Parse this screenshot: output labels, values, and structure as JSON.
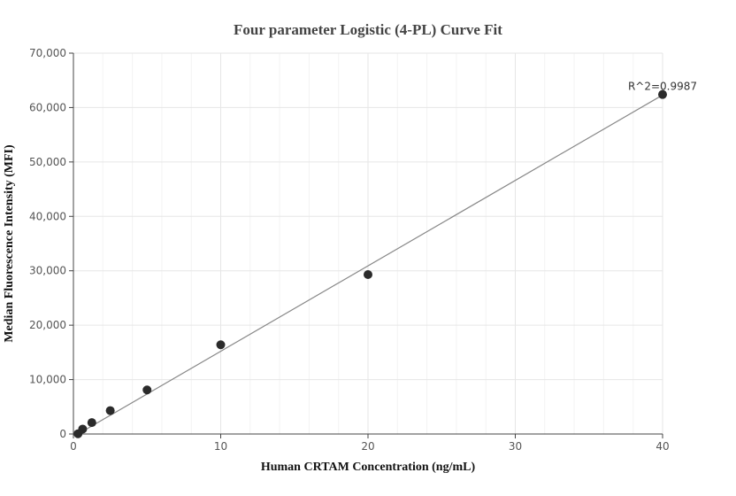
{
  "chart_data": {
    "type": "scatter",
    "title": "Four parameter Logistic (4-PL) Curve Fit",
    "xlabel": "Human CRTAM Concentration (ng/mL)",
    "ylabel": "Median Fluorescence Intensity (MFI)",
    "xlim": [
      0,
      40
    ],
    "ylim": [
      0,
      70000
    ],
    "x_ticks": [
      0,
      10,
      20,
      30,
      40
    ],
    "x_tick_labels": [
      "0",
      "10",
      "20",
      "30",
      "40"
    ],
    "y_ticks": [
      0,
      10000,
      20000,
      30000,
      40000,
      50000,
      60000,
      70000
    ],
    "y_tick_labels": [
      "0",
      "10,000",
      "20,000",
      "30,000",
      "40,000",
      "50,000",
      "60,000",
      "70,000"
    ],
    "grid": true,
    "points": [
      {
        "x": 0.3125,
        "y": 50
      },
      {
        "x": 0.625,
        "y": 900
      },
      {
        "x": 1.25,
        "y": 2100
      },
      {
        "x": 2.5,
        "y": 4300
      },
      {
        "x": 5,
        "y": 8100
      },
      {
        "x": 10,
        "y": 16400
      },
      {
        "x": 20,
        "y": 29300
      },
      {
        "x": 40,
        "y": 62400
      }
    ],
    "fit_line": [
      {
        "x": 0.3125,
        "y": 0
      },
      {
        "x": 40,
        "y": 62300
      }
    ],
    "annotation": "R^2=0.9987",
    "colors": {
      "point": "#2b2b2b",
      "line": "#888888",
      "grid": "#e6e6e6",
      "axis": "#444444"
    }
  }
}
